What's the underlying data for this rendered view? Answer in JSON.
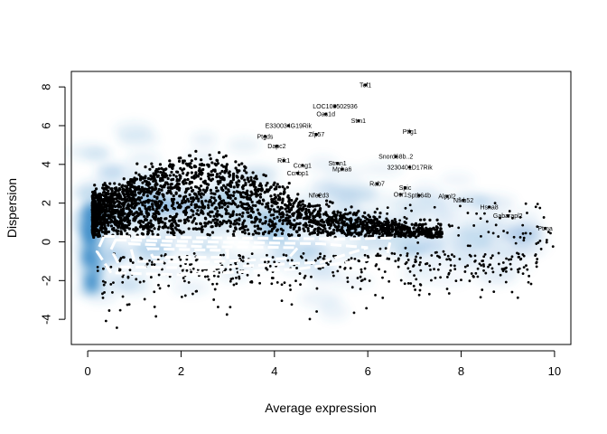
{
  "chart_data": {
    "type": "scatter",
    "title": "",
    "xlabel": "Average expression",
    "ylabel": "Dispersion",
    "xlim": [
      -0.35,
      10.35
    ],
    "ylim": [
      -5.3,
      8.8
    ],
    "x_ticks": [
      "0",
      "2",
      "4",
      "6",
      "8",
      "10"
    ],
    "y_ticks": [
      "-4",
      "-2",
      "0",
      "2",
      "4",
      "6",
      "8"
    ],
    "x_tick_values": [
      0,
      2,
      4,
      6,
      8,
      10
    ],
    "y_tick_values": [
      -4,
      -2,
      0,
      2,
      4,
      6,
      8
    ],
    "density_color": "#3d8bc9",
    "point_color": "#000000",
    "contour_color": "#ffffff",
    "grid": false,
    "legend": "none",
    "labeled_genes": [
      {
        "label": "Tef1",
        "x": 5.95,
        "y": 8.1
      },
      {
        "label": "LOC100502936",
        "x": 5.3,
        "y": 7.0
      },
      {
        "label": "Oas1d",
        "x": 5.1,
        "y": 6.6
      },
      {
        "label": "Stm1",
        "x": 5.8,
        "y": 6.25
      },
      {
        "label": "E330034G19Rik",
        "x": 4.3,
        "y": 6.0
      },
      {
        "label": "Ptlg1",
        "x": 6.9,
        "y": 5.7
      },
      {
        "label": "Zfp57",
        "x": 4.9,
        "y": 5.55
      },
      {
        "label": "Ptgds",
        "x": 3.8,
        "y": 5.45
      },
      {
        "label": "Dapc2",
        "x": 4.05,
        "y": 4.95
      },
      {
        "label": "Snord68b..2",
        "x": 6.6,
        "y": 4.4
      },
      {
        "label": "Rik1",
        "x": 4.2,
        "y": 4.2
      },
      {
        "label": "Stmn1",
        "x": 5.35,
        "y": 4.05
      },
      {
        "label": "Ccng1",
        "x": 4.6,
        "y": 3.95
      },
      {
        "label": "3230401D17Rik",
        "x": 6.9,
        "y": 3.85
      },
      {
        "label": "Mpha6",
        "x": 5.45,
        "y": 3.75
      },
      {
        "label": "Ccnbp1",
        "x": 4.5,
        "y": 3.55
      },
      {
        "label": "Rab7",
        "x": 6.2,
        "y": 3.0
      },
      {
        "label": "Spic",
        "x": 6.8,
        "y": 2.8
      },
      {
        "label": "Osr1",
        "x": 6.7,
        "y": 2.45
      },
      {
        "label": "Sptb64b",
        "x": 7.1,
        "y": 2.4
      },
      {
        "label": "Alppl2",
        "x": 7.7,
        "y": 2.35
      },
      {
        "label": "Nfkb52",
        "x": 8.05,
        "y": 2.15
      },
      {
        "label": "Hsna8",
        "x": 8.6,
        "y": 1.8
      },
      {
        "label": "Gabarapl2",
        "x": 9.0,
        "y": 1.35
      },
      {
        "label": "Ptma",
        "x": 9.8,
        "y": 0.7
      },
      {
        "label": "Nfe2d3",
        "x": 4.95,
        "y": 2.4
      }
    ]
  }
}
